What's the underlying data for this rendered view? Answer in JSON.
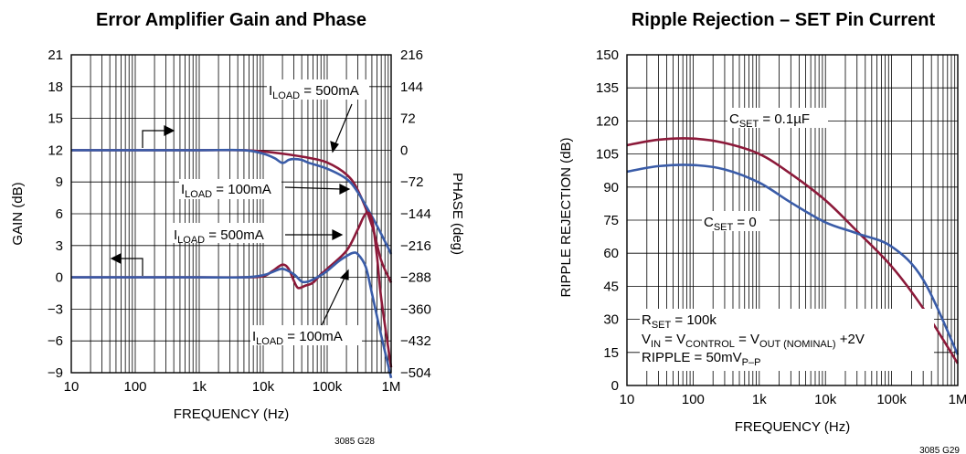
{
  "chart_data": [
    {
      "type": "line",
      "title": "Error Amplifier Gain and Phase",
      "xlabel": "FREQUENCY (Hz)",
      "ylabel": "GAIN (dB)",
      "y2label": "PHASE (deg)",
      "xscale": "log",
      "xlim": [
        10,
        1000000
      ],
      "ylim": [
        -9,
        21
      ],
      "y2lim": [
        -504,
        216
      ],
      "xticks": [
        "10",
        "100",
        "1k",
        "10k",
        "100k",
        "1M"
      ],
      "yticks": [
        "21",
        "18",
        "15",
        "12",
        "9",
        "6",
        "3",
        "0",
        "−3",
        "−6",
        "−9"
      ],
      "y2ticks": [
        "216",
        "144",
        "72",
        "0",
        "−72",
        "−144",
        "−216",
        "−288",
        "−360",
        "−432",
        "−504"
      ],
      "grid": true,
      "note": "3085 G28",
      "series": [
        {
          "label": "I_LOAD = 500mA",
          "axis": "phase",
          "color": "#8c1a3a",
          "x": [
            10,
            100,
            1000,
            5000,
            10000,
            20000,
            50000,
            100000,
            200000,
            300000,
            500000,
            700000,
            1000000
          ],
          "y": [
            0,
            0,
            0,
            0,
            -3,
            -8,
            -17,
            -28,
            -55,
            -90,
            -170,
            -250,
            -300
          ]
        },
        {
          "label": "I_LOAD = 100mA",
          "axis": "phase",
          "color": "#3a5ca8",
          "x": [
            10,
            100,
            1000,
            5000,
            10000,
            15000,
            20000,
            25000,
            30000,
            40000,
            50000,
            100000,
            200000,
            300000,
            500000,
            700000,
            1000000
          ],
          "y": [
            0,
            0,
            0,
            0,
            -8,
            -18,
            -29,
            -22,
            -20,
            -22,
            -28,
            -42,
            -65,
            -95,
            -150,
            -190,
            -235
          ]
        },
        {
          "label": "I_LOAD = 500mA",
          "axis": "gain",
          "color": "#8c1a3a",
          "x": [
            10,
            100,
            1000,
            5000,
            10000,
            14000,
            20000,
            25000,
            30000,
            35000,
            45000,
            60000,
            80000,
            100000,
            200000,
            300000,
            400000,
            500000,
            600000,
            700000,
            1000000
          ],
          "y": [
            0,
            0,
            0,
            0,
            0.1,
            0.6,
            1.2,
            0.8,
            -0.3,
            -1.0,
            -0.8,
            -0.5,
            0.3,
            0.8,
            2.5,
            4.5,
            6.0,
            5.5,
            2.0,
            -2.0,
            -8.5
          ]
        },
        {
          "label": "I_LOAD = 100mA",
          "axis": "gain",
          "color": "#3a5ca8",
          "x": [
            10,
            100,
            1000,
            5000,
            10000,
            14000,
            20000,
            30000,
            40000,
            50000,
            60000,
            80000,
            100000,
            150000,
            200000,
            250000,
            300000,
            400000,
            500000,
            700000,
            1000000
          ],
          "y": [
            0,
            0,
            0,
            0,
            0.2,
            0.5,
            0.8,
            0.3,
            -0.4,
            -0.4,
            -0.2,
            0.2,
            0.6,
            1.5,
            2.0,
            2.3,
            2.2,
            1.0,
            -1.5,
            -5.5,
            -9.5
          ]
        }
      ],
      "annotations": [
        {
          "parts": [
            [
              "I",
              false
            ],
            [
              "LOAD",
              true
            ],
            [
              " = 500mA",
              false
            ]
          ]
        },
        {
          "parts": [
            [
              "I",
              false
            ],
            [
              "LOAD",
              true
            ],
            [
              " = 100mA",
              false
            ]
          ]
        },
        {
          "parts": [
            [
              "I",
              false
            ],
            [
              "LOAD",
              true
            ],
            [
              " = 500mA",
              false
            ]
          ]
        },
        {
          "parts": [
            [
              "I",
              false
            ],
            [
              "LOAD",
              true
            ],
            [
              " = 100mA",
              false
            ]
          ]
        }
      ]
    },
    {
      "type": "line",
      "title": "Ripple Rejection – SET Pin Current",
      "xlabel": "FREQUENCY (Hz)",
      "ylabel": "RIPPLE REJECTION (dB)",
      "xscale": "log",
      "xlim": [
        10,
        1000000
      ],
      "ylim": [
        0,
        150
      ],
      "xticks": [
        "10",
        "100",
        "1k",
        "10k",
        "100k",
        "1M"
      ],
      "yticks": [
        "150",
        "135",
        "120",
        "105",
        "90",
        "75",
        "60",
        "45",
        "30",
        "15",
        "0"
      ],
      "grid": true,
      "note": "3085 G29",
      "series": [
        {
          "label": "C_SET = 0.1µF",
          "color": "#8c1a3a",
          "x": [
            10,
            30,
            100,
            300,
            1000,
            3000,
            10000,
            30000,
            100000,
            300000,
            1000000
          ],
          "y": [
            109,
            111.5,
            112,
            110,
            105,
            96,
            84,
            70,
            54,
            35,
            10
          ]
        },
        {
          "label": "C_SET = 0",
          "color": "#3a5ca8",
          "x": [
            10,
            30,
            100,
            300,
            1000,
            3000,
            10000,
            30000,
            100000,
            300000,
            1000000
          ],
          "y": [
            97,
            99.5,
            100,
            98,
            92,
            83,
            74,
            69,
            63,
            48,
            14
          ]
        }
      ],
      "annotations": [
        {
          "parts": [
            [
              "C",
              false
            ],
            [
              "SET",
              true
            ],
            [
              " = 0.1µF",
              false
            ]
          ]
        },
        {
          "parts": [
            [
              "C",
              false
            ],
            [
              "SET",
              true
            ],
            [
              " = 0",
              false
            ]
          ]
        },
        {
          "parts": [
            [
              "R",
              false
            ],
            [
              "SET",
              true
            ],
            [
              " = 100k",
              false
            ]
          ]
        },
        {
          "parts": [
            [
              "V",
              false
            ],
            [
              "IN",
              true
            ],
            [
              " = V",
              false
            ],
            [
              "CONTROL",
              true
            ],
            [
              " = V",
              false
            ],
            [
              "OUT (NOMINAL)",
              true
            ],
            [
              " +2V",
              false
            ]
          ]
        },
        {
          "parts": [
            [
              "RIPPLE = 50mV",
              false
            ],
            [
              "P–P",
              true
            ]
          ]
        }
      ]
    }
  ]
}
